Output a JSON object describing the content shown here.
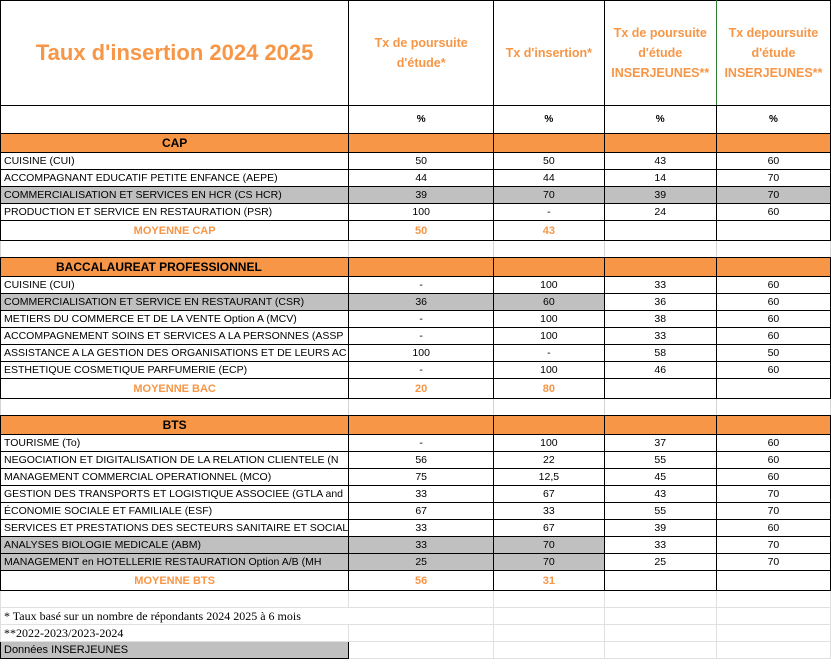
{
  "title": "Taux d'insertion 2024 2025",
  "headers": {
    "poursuite": "Tx de poursuite d'étude*",
    "insertion": "Tx d'insertion*",
    "poursuite_inser": "Tx de poursuite d'étude INSERJEUNES**",
    "depoursuite_inser": "Tx depoursuite d'étude INSERJEUNES**"
  },
  "unit": "%",
  "sections": {
    "cap": {
      "label": "CAP",
      "rows": [
        {
          "name": "CUISINE (CUI)",
          "a": "50",
          "b": "50",
          "c": "43",
          "d": "60"
        },
        {
          "name": "ACCOMPAGNANT EDUCATIF PETITE ENFANCE  (AEPE)",
          "a": "44",
          "b": "44",
          "c": "14",
          "d": "70"
        },
        {
          "name": "COMMERCIALISATION ET SERVICES EN  HCR (CS HCR)",
          "a": "39",
          "b": "70",
          "c": "39",
          "d": "70"
        },
        {
          "name": "PRODUCTION ET SERVICE EN RESTAURATION (PSR)",
          "a": "100",
          "b": "-",
          "c": "24",
          "d": "60"
        }
      ],
      "avg_label": "MOYENNE CAP",
      "avg_a": "50",
      "avg_b": "43"
    },
    "bac": {
      "label": "BACCALAUREAT PROFESSIONNEL",
      "rows": [
        {
          "name": "CUISINE (CUI)",
          "a": "-",
          "b": "100",
          "c": "33",
          "d": "60"
        },
        {
          "name": "COMMERCIALISATION ET SERVICE EN RESTAURANT (CSR)",
          "a": "36",
          "b": "60",
          "c": "36",
          "d": "60"
        },
        {
          "name": "METIERS DU COMMERCE ET DE LA VENTE Option A (MCV)",
          "a": "-",
          "b": "100",
          "c": "38",
          "d": "60"
        },
        {
          "name": "ACCOMPAGNEMENT SOINS ET SERVICES A LA PERSONNES (ASSP",
          "a": "-",
          "b": "100",
          "c": "33",
          "d": "60"
        },
        {
          "name": "ASSISTANCE A LA GESTION DES ORGANISATIONS ET DE LEURS AC",
          "a": "100",
          "b": "-",
          "c": "58",
          "d": "50"
        },
        {
          "name": "ESTHETIQUE COSMETIQUE PARFUMERIE (ECP)",
          "a": "-",
          "b": "100",
          "c": "46",
          "d": "60"
        }
      ],
      "avg_label": "MOYENNE BAC",
      "avg_a": "20",
      "avg_b": "80"
    },
    "bts": {
      "label": "BTS",
      "rows": [
        {
          "name": "TOURISME (To)",
          "a": "-",
          "b": "100",
          "c": "37",
          "d": "60"
        },
        {
          "name": "NEGOCIATION ET DIGITALISATION DE LA RELATION CLIENTELE (N",
          "a": "56",
          "b": "22",
          "c": "55",
          "d": "60"
        },
        {
          "name": "MANAGEMENT COMMERCIAL OPERATIONNEL (MCO)",
          "a": "75",
          "b": "12,5",
          "c": "45",
          "d": "60"
        },
        {
          "name": "GESTION DES TRANSPORTS ET LOGISTIQUE ASSOCIEE (GTLA and",
          "a": "33",
          "b": "67",
          "c": "43",
          "d": "70"
        },
        {
          "name": "ÉCONOMIE SOCIALE ET FAMILIALE (ESF)",
          "a": "67",
          "b": "33",
          "c": "55",
          "d": "70"
        },
        {
          "name": "SERVICES ET PRESTATIONS DES SECTEURS SANITAIRE ET SOCIAL",
          "a": "33",
          "b": "67",
          "c": "39",
          "d": "60"
        },
        {
          "name": "ANALYSES BIOLOGIE MEDICALE (ABM)",
          "a": "33",
          "b": "70",
          "c": "33",
          "d": "70"
        },
        {
          "name": "MANAGEMENT en HOTELLERIE RESTAURATION Option A/B  (MH",
          "a": "25",
          "b": "70",
          "c": "25",
          "d": "70"
        }
      ],
      "avg_label": "MOYENNE  BTS",
      "avg_a": "56",
      "avg_b": "31"
    }
  },
  "notes": {
    "note1": "* Taux basé sur un nombre de répondants 2024 2025 à 6 mois",
    "note2": "**2022-2023/2023-2024",
    "note3": "Données INSERJEUNES"
  },
  "colors": {
    "accent": "#f79646",
    "grey": "#c0c0c0"
  }
}
